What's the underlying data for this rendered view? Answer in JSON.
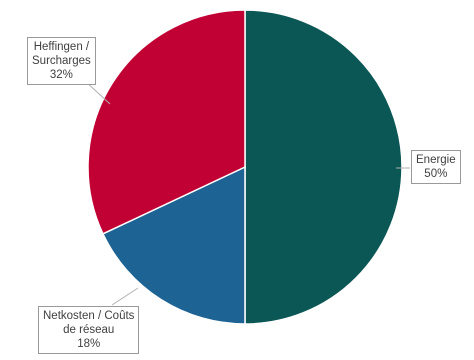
{
  "chart_data": {
    "type": "pie",
    "start_angle_deg": 0,
    "direction": "clockwise",
    "slices": [
      {
        "key": "energie",
        "label_lines": [
          "Energie"
        ],
        "value": 50,
        "value_label": "50%",
        "color": "#0b5756"
      },
      {
        "key": "netkosten",
        "label_lines": [
          "Netkosten / Coûts",
          "de réseau"
        ],
        "value": 18,
        "value_label": "18%",
        "color": "#1d6394"
      },
      {
        "key": "heffingen",
        "label_lines": [
          "Heffingen /",
          "Surcharges"
        ],
        "value": 32,
        "value_label": "32%",
        "color": "#c10033"
      }
    ],
    "legend": "none",
    "labels": "callouts"
  }
}
